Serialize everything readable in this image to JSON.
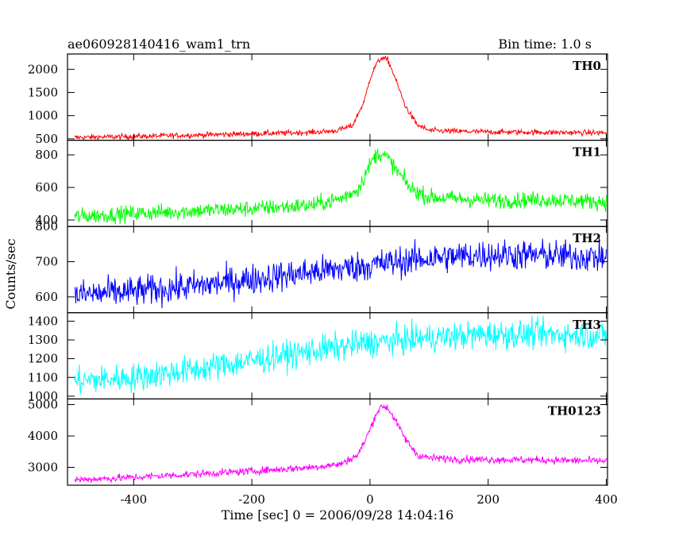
{
  "chart_data": {
    "type": "line",
    "title": "ae060928140416_wam1_trn",
    "subtitle": "Bin time: 1.0 s",
    "xlabel": "Time [sec] 0 = 2006/09/28 14:04:16",
    "ylabel": "Counts/sec",
    "xlim": [
      -512,
      402
    ],
    "x_ticks": [
      -400,
      -200,
      0,
      200,
      400
    ],
    "series": [
      {
        "name": "TH0",
        "color": "#ff0000",
        "ylim": [
          470,
          2330
        ],
        "y_ticks": [
          500,
          1000,
          1500,
          2000
        ],
        "x": [
          -500,
          -400,
          -300,
          -200,
          -100,
          -60,
          -30,
          -10,
          0,
          10,
          20,
          30,
          40,
          60,
          80,
          100,
          150,
          200,
          300,
          400
        ],
        "values": [
          530,
          550,
          580,
          610,
          640,
          670,
          780,
          1300,
          1800,
          2100,
          2250,
          2200,
          1900,
          1200,
          800,
          680,
          660,
          650,
          640,
          630
        ],
        "noise": 30
      },
      {
        "name": "TH1",
        "color": "#00ff00",
        "ylim": [
          360,
          890
        ],
        "y_ticks": [
          400,
          600,
          800
        ],
        "x": [
          -500,
          -400,
          -300,
          -200,
          -100,
          -50,
          -20,
          0,
          10,
          20,
          30,
          50,
          70,
          100,
          200,
          300,
          400
        ],
        "values": [
          420,
          440,
          455,
          470,
          490,
          530,
          590,
          740,
          800,
          810,
          780,
          680,
          590,
          540,
          520,
          525,
          510
        ],
        "noise": 25
      },
      {
        "name": "TH2",
        "color": "#0000ff",
        "ylim": [
          555,
          800
        ],
        "y_ticks": [
          600,
          700,
          800
        ],
        "x": [
          -500,
          -400,
          -300,
          -200,
          -100,
          0,
          100,
          200,
          300,
          400
        ],
        "values": [
          605,
          615,
          630,
          650,
          670,
          690,
          710,
          720,
          718,
          712
        ],
        "noise": 22
      },
      {
        "name": "TH3",
        "color": "#00ffff",
        "ylim": [
          985,
          1445
        ],
        "y_ticks": [
          1000,
          1100,
          1200,
          1300,
          1400
        ],
        "x": [
          -500,
          -400,
          -300,
          -200,
          -100,
          0,
          100,
          200,
          300,
          400
        ],
        "values": [
          1080,
          1100,
          1140,
          1190,
          1240,
          1285,
          1310,
          1330,
          1330,
          1325
        ],
        "noise": 38
      },
      {
        "name": "TH0123",
        "color": "#ff00ff",
        "ylim": [
          2430,
          5180
        ],
        "y_ticks": [
          3000,
          4000,
          5000
        ],
        "x": [
          -500,
          -400,
          -300,
          -200,
          -100,
          -50,
          -20,
          0,
          10,
          20,
          30,
          40,
          60,
          80,
          100,
          150,
          200,
          300,
          400
        ],
        "values": [
          2600,
          2680,
          2780,
          2880,
          3000,
          3100,
          3400,
          4200,
          4700,
          4950,
          4900,
          4600,
          3900,
          3400,
          3300,
          3260,
          3250,
          3230,
          3200
        ],
        "noise": 60
      }
    ]
  }
}
